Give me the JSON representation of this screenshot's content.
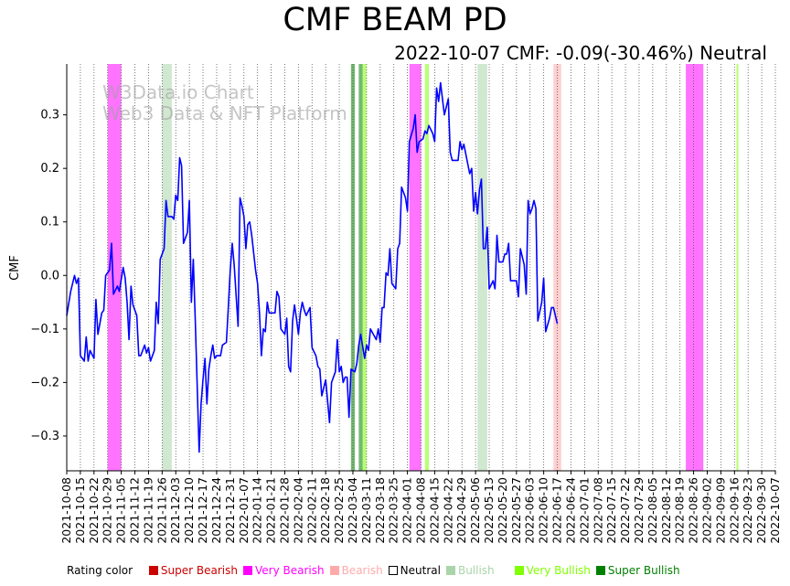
{
  "chart_data": {
    "type": "line",
    "title": "CMF BEAM PD",
    "subtitle": "2022-10-07 CMF: -0.09(-30.46%) Neutral",
    "ylabel": "CMF",
    "xlabel": "",
    "ylim": [
      -0.365,
      0.395
    ],
    "yticks": [
      -0.3,
      -0.2,
      -0.1,
      0.0,
      0.1,
      0.2,
      0.3
    ],
    "ytick_labels": [
      "−0.3",
      "−0.2",
      "−0.1",
      "0.0",
      "0.1",
      "0.2",
      "0.3"
    ],
    "date_start": "2021-10-08",
    "days": 364,
    "xtick_labels": [
      "2021-10-08",
      "2021-10-15",
      "2021-10-22",
      "2021-10-29",
      "2021-11-05",
      "2021-11-12",
      "2021-11-19",
      "2021-11-26",
      "2021-12-03",
      "2021-12-10",
      "2021-12-17",
      "2021-12-24",
      "2021-12-31",
      "2022-01-07",
      "2022-01-14",
      "2022-01-21",
      "2022-01-28",
      "2022-02-04",
      "2022-02-11",
      "2022-02-18",
      "2022-02-25",
      "2022-03-04",
      "2022-03-11",
      "2022-03-18",
      "2022-03-25",
      "2022-04-01",
      "2022-04-08",
      "2022-04-15",
      "2022-04-22",
      "2022-04-29",
      "2022-05-06",
      "2022-05-13",
      "2022-05-20",
      "2022-05-27",
      "2022-06-03",
      "2022-06-10",
      "2022-06-17",
      "2022-06-24",
      "2022-07-01",
      "2022-07-08",
      "2022-07-15",
      "2022-07-22",
      "2022-07-29",
      "2022-08-05",
      "2022-08-12",
      "2022-08-19",
      "2022-08-26",
      "2022-09-02",
      "2022-09-09",
      "2022-09-16",
      "2022-09-23",
      "2022-09-30",
      "2022-10-07"
    ],
    "series": [
      {
        "name": "CMF",
        "color": "#0000ff",
        "points": [
          [
            0,
            -0.075
          ],
          [
            2,
            -0.03
          ],
          [
            4,
            0.0
          ],
          [
            5,
            -0.015
          ],
          [
            6,
            -0.005
          ],
          [
            7,
            -0.15
          ],
          [
            9,
            -0.16
          ],
          [
            10,
            -0.115
          ],
          [
            11,
            -0.16
          ],
          [
            12,
            -0.14
          ],
          [
            14,
            -0.155
          ],
          [
            15,
            -0.045
          ],
          [
            16,
            -0.11
          ],
          [
            18,
            -0.07
          ],
          [
            19,
            -0.065
          ],
          [
            20,
            0.0
          ],
          [
            22,
            0.01
          ],
          [
            23,
            0.06
          ],
          [
            24,
            -0.035
          ],
          [
            26,
            -0.02
          ],
          [
            27,
            -0.03
          ],
          [
            29,
            0.015
          ],
          [
            30,
            -0.005
          ],
          [
            31,
            -0.05
          ],
          [
            32,
            -0.12
          ],
          [
            33,
            -0.02
          ],
          [
            34,
            -0.055
          ],
          [
            36,
            -0.075
          ],
          [
            37,
            -0.15
          ],
          [
            38,
            -0.15
          ],
          [
            40,
            -0.13
          ],
          [
            41,
            -0.145
          ],
          [
            42,
            -0.135
          ],
          [
            43,
            -0.16
          ],
          [
            45,
            -0.14
          ],
          [
            46,
            -0.05
          ],
          [
            47,
            -0.09
          ],
          [
            48,
            0.03
          ],
          [
            50,
            0.05
          ],
          [
            51,
            0.14
          ],
          [
            52,
            0.11
          ],
          [
            54,
            0.11
          ],
          [
            55,
            0.105
          ],
          [
            56,
            0.15
          ],
          [
            57,
            0.14
          ],
          [
            58,
            0.22
          ],
          [
            59,
            0.205
          ],
          [
            60,
            0.06
          ],
          [
            62,
            0.08
          ],
          [
            63,
            0.14
          ],
          [
            64,
            -0.05
          ],
          [
            65,
            0.03
          ],
          [
            66,
            -0.08
          ],
          [
            68,
            -0.33
          ],
          [
            69,
            -0.24
          ],
          [
            70,
            -0.195
          ],
          [
            71,
            -0.155
          ],
          [
            72,
            -0.24
          ],
          [
            73,
            -0.175
          ],
          [
            74,
            -0.15
          ],
          [
            75,
            -0.13
          ],
          [
            76,
            -0.155
          ],
          [
            77,
            -0.15
          ],
          [
            79,
            -0.15
          ],
          [
            80,
            -0.13
          ],
          [
            82,
            -0.125
          ],
          [
            83,
            -0.06
          ],
          [
            84,
            0.01
          ],
          [
            85,
            0.06
          ],
          [
            86,
            0.02
          ],
          [
            88,
            -0.095
          ],
          [
            89,
            0.145
          ],
          [
            90,
            0.13
          ],
          [
            91,
            0.11
          ],
          [
            92,
            0.05
          ],
          [
            93,
            0.095
          ],
          [
            94,
            0.1
          ],
          [
            95,
            0.075
          ],
          [
            97,
            0.01
          ],
          [
            98,
            -0.015
          ],
          [
            99,
            -0.07
          ],
          [
            100,
            -0.15
          ],
          [
            101,
            -0.1
          ],
          [
            102,
            -0.105
          ],
          [
            103,
            -0.05
          ],
          [
            104,
            -0.07
          ],
          [
            107,
            -0.07
          ],
          [
            108,
            -0.03
          ],
          [
            109,
            -0.04
          ],
          [
            110,
            -0.1
          ],
          [
            112,
            -0.11
          ],
          [
            113,
            -0.08
          ],
          [
            114,
            -0.17
          ],
          [
            115,
            -0.18
          ],
          [
            116,
            -0.085
          ],
          [
            117,
            -0.055
          ],
          [
            118,
            -0.08
          ],
          [
            119,
            -0.11
          ],
          [
            120,
            -0.07
          ],
          [
            121,
            -0.05
          ],
          [
            122,
            -0.065
          ],
          [
            123,
            -0.075
          ],
          [
            125,
            -0.06
          ],
          [
            126,
            -0.135
          ],
          [
            128,
            -0.15
          ],
          [
            129,
            -0.17
          ],
          [
            130,
            -0.175
          ],
          [
            131,
            -0.225
          ],
          [
            133,
            -0.195
          ],
          [
            135,
            -0.275
          ],
          [
            136,
            -0.2
          ],
          [
            138,
            -0.18
          ],
          [
            139,
            -0.12
          ],
          [
            140,
            -0.18
          ],
          [
            141,
            -0.17
          ],
          [
            142,
            -0.2
          ],
          [
            143,
            -0.19
          ],
          [
            144,
            -0.19
          ],
          [
            145,
            -0.265
          ],
          [
            146,
            -0.175
          ],
          [
            148,
            -0.18
          ],
          [
            149,
            -0.165
          ],
          [
            150,
            -0.13
          ],
          [
            151,
            -0.11
          ],
          [
            153,
            -0.155
          ],
          [
            154,
            -0.13
          ],
          [
            155,
            -0.14
          ],
          [
            156,
            -0.1
          ],
          [
            159,
            -0.12
          ],
          [
            160,
            -0.1
          ],
          [
            161,
            -0.125
          ],
          [
            162,
            -0.06
          ],
          [
            163,
            -0.06
          ],
          [
            164,
            0.005
          ],
          [
            165,
            0.0
          ],
          [
            166,
            0.05
          ],
          [
            167,
            -0.015
          ],
          [
            169,
            -0.025
          ],
          [
            170,
            0.05
          ],
          [
            171,
            0.06
          ],
          [
            172,
            0.165
          ],
          [
            174,
            0.145
          ],
          [
            175,
            0.12
          ],
          [
            176,
            0.25
          ],
          [
            178,
            0.275
          ],
          [
            179,
            0.3
          ],
          [
            180,
            0.23
          ],
          [
            181,
            0.25
          ],
          [
            183,
            0.255
          ],
          [
            184,
            0.27
          ],
          [
            185,
            0.265
          ],
          [
            186,
            0.28
          ],
          [
            188,
            0.265
          ],
          [
            189,
            0.25
          ],
          [
            190,
            0.35
          ],
          [
            191,
            0.325
          ],
          [
            192,
            0.36
          ],
          [
            193,
            0.33
          ],
          [
            194,
            0.3
          ],
          [
            196,
            0.33
          ],
          [
            197,
            0.23
          ],
          [
            198,
            0.215
          ],
          [
            201,
            0.215
          ],
          [
            202,
            0.25
          ],
          [
            203,
            0.235
          ],
          [
            204,
            0.245
          ],
          [
            207,
            0.19
          ],
          [
            208,
            0.2
          ],
          [
            209,
            0.12
          ],
          [
            210,
            0.155
          ],
          [
            211,
            0.115
          ],
          [
            212,
            0.16
          ],
          [
            213,
            0.18
          ],
          [
            214,
            0.05
          ],
          [
            215,
            0.05
          ],
          [
            216,
            0.09
          ],
          [
            217,
            -0.025
          ],
          [
            219,
            -0.01
          ],
          [
            220,
            -0.025
          ],
          [
            221,
            0.075
          ],
          [
            222,
            0.025
          ],
          [
            224,
            0.025
          ],
          [
            225,
            0.04
          ],
          [
            226,
            0.04
          ],
          [
            227,
            0.06
          ],
          [
            228,
            -0.01
          ],
          [
            231,
            -0.01
          ],
          [
            232,
            -0.04
          ],
          [
            233,
            0.05
          ],
          [
            235,
            0.02
          ],
          [
            236,
            -0.035
          ],
          [
            237,
            0.14
          ],
          [
            238,
            0.115
          ],
          [
            239,
            0.125
          ],
          [
            240,
            0.14
          ],
          [
            241,
            0.125
          ],
          [
            242,
            -0.085
          ],
          [
            244,
            -0.05
          ],
          [
            245,
            -0.005
          ],
          [
            246,
            -0.105
          ],
          [
            248,
            -0.08
          ],
          [
            249,
            -0.06
          ],
          [
            250,
            -0.06
          ],
          [
            252,
            -0.09
          ]
        ]
      }
    ],
    "band_legend": {
      "Super Bearish": "#cc0000",
      "Very Bearish": "#ff00ff",
      "Bearish": "#ffaaaa",
      "Neutral": "#ffffff",
      "Bullish": "#aad4aa",
      "Very Bullish": "#80ff00",
      "Super Bullish": "#008000"
    },
    "rating_bands": [
      {
        "start": 21,
        "end": 28,
        "rating": "Very Bearish"
      },
      {
        "start": 49,
        "end": 54,
        "rating": "Bullish"
      },
      {
        "start": 146,
        "end": 148,
        "rating": "Super Bullish"
      },
      {
        "start": 150,
        "end": 152,
        "rating": "Super Bullish"
      },
      {
        "start": 152,
        "end": 154,
        "rating": "Very Bullish"
      },
      {
        "start": 176,
        "end": 182,
        "rating": "Very Bearish"
      },
      {
        "start": 184,
        "end": 186,
        "rating": "Very Bullish"
      },
      {
        "start": 211,
        "end": 216,
        "rating": "Bullish"
      },
      {
        "start": 250,
        "end": 254,
        "rating": "Bearish"
      },
      {
        "start": 318,
        "end": 327,
        "rating": "Very Bearish"
      },
      {
        "start": 344,
        "end": 345,
        "rating": "Very Bullish"
      }
    ]
  },
  "watermark": {
    "line1": "W3Data.io Chart",
    "line2": "Web3 Data & NFT Platform"
  },
  "legend": {
    "label": "Rating color",
    "items": [
      {
        "name": "Super Bearish",
        "color": "#cc0000",
        "text_color": "#cc0000"
      },
      {
        "name": "Very Bearish",
        "color": "#ff00ff",
        "text_color": "#ff00ff"
      },
      {
        "name": "Bearish",
        "color": "#ffaaaa",
        "text_color": "#ffaaaa"
      },
      {
        "name": "Neutral",
        "color": "#ffffff",
        "text_color": "#000000"
      },
      {
        "name": "Bullish",
        "color": "#aad4aa",
        "text_color": "#aad4aa"
      },
      {
        "name": "Very Bullish",
        "color": "#80ff00",
        "text_color": "#80ff00"
      },
      {
        "name": "Super Bullish",
        "color": "#008000",
        "text_color": "#008000"
      }
    ]
  }
}
